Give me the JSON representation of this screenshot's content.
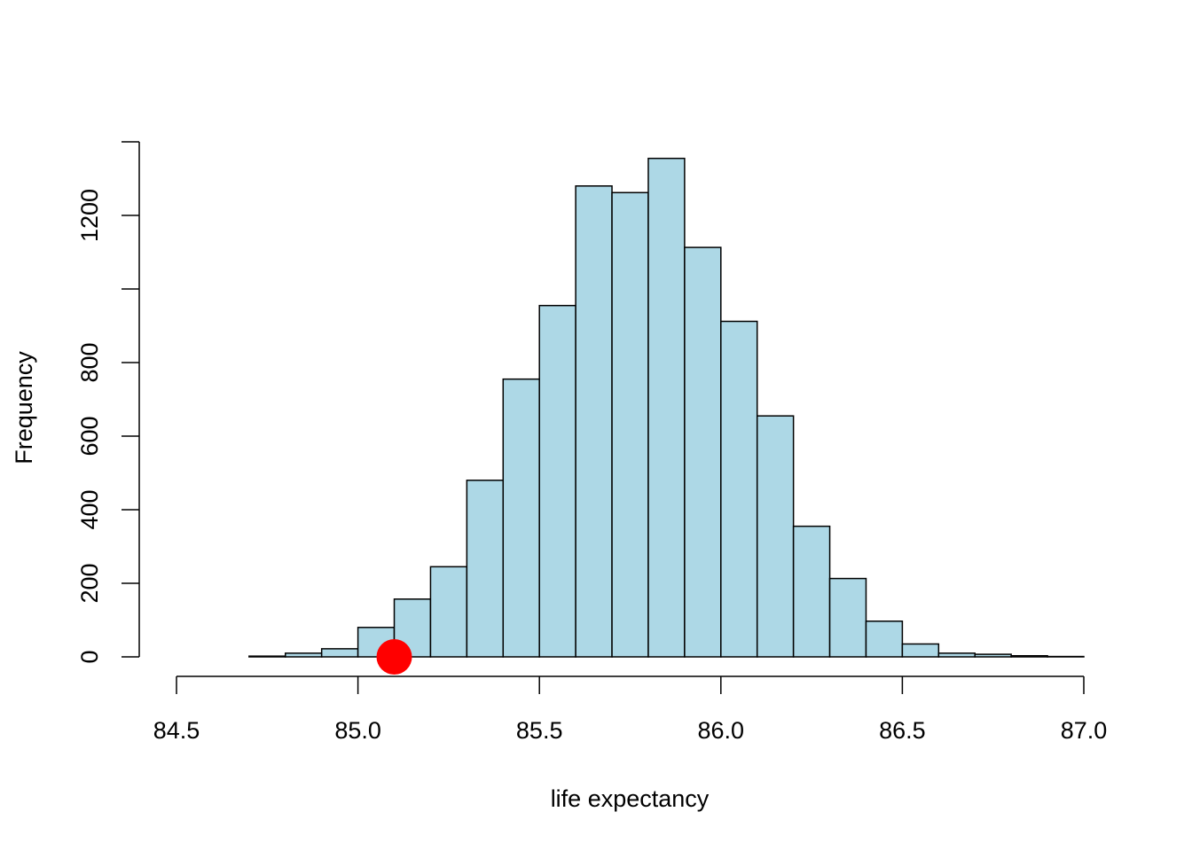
{
  "chart_data": {
    "type": "histogram",
    "title": "",
    "xlabel": "life expectancy",
    "ylabel": "Frequency",
    "bar_color": "#ADD8E6",
    "bar_border_color": "#000000",
    "marker_color": "#FF0000",
    "xlim": [
      84.5,
      87.0
    ],
    "ylim": [
      0,
      1400
    ],
    "x_ticks": [
      84.5,
      85.0,
      85.5,
      86.0,
      86.5,
      87.0
    ],
    "x_tick_labels": [
      "84.5",
      "85.0",
      "85.5",
      "86.0",
      "86.5",
      "87.0"
    ],
    "y_ticks": [
      0,
      200,
      400,
      600,
      800,
      1000,
      1200,
      1400
    ],
    "y_tick_labels": [
      "0",
      "200",
      "400",
      "600",
      "800",
      "",
      "1200",
      ""
    ],
    "bin_width": 0.1,
    "bins": [
      {
        "start": 84.5,
        "end": 84.6,
        "count": 0
      },
      {
        "start": 84.6,
        "end": 84.7,
        "count": 0
      },
      {
        "start": 84.7,
        "end": 84.8,
        "count": 2
      },
      {
        "start": 84.8,
        "end": 84.9,
        "count": 10
      },
      {
        "start": 84.9,
        "end": 85.0,
        "count": 22
      },
      {
        "start": 85.0,
        "end": 85.1,
        "count": 80
      },
      {
        "start": 85.1,
        "end": 85.2,
        "count": 157
      },
      {
        "start": 85.2,
        "end": 85.3,
        "count": 245
      },
      {
        "start": 85.3,
        "end": 85.4,
        "count": 480
      },
      {
        "start": 85.4,
        "end": 85.5,
        "count": 755
      },
      {
        "start": 85.5,
        "end": 85.6,
        "count": 955
      },
      {
        "start": 85.6,
        "end": 85.7,
        "count": 1280
      },
      {
        "start": 85.7,
        "end": 85.8,
        "count": 1262
      },
      {
        "start": 85.8,
        "end": 85.9,
        "count": 1355
      },
      {
        "start": 85.9,
        "end": 86.0,
        "count": 1113
      },
      {
        "start": 86.0,
        "end": 86.1,
        "count": 912
      },
      {
        "start": 86.1,
        "end": 86.2,
        "count": 655
      },
      {
        "start": 86.2,
        "end": 86.3,
        "count": 355
      },
      {
        "start": 86.3,
        "end": 86.4,
        "count": 213
      },
      {
        "start": 86.4,
        "end": 86.5,
        "count": 97
      },
      {
        "start": 86.5,
        "end": 86.6,
        "count": 35
      },
      {
        "start": 86.6,
        "end": 86.7,
        "count": 10
      },
      {
        "start": 86.7,
        "end": 86.8,
        "count": 7
      },
      {
        "start": 86.8,
        "end": 86.9,
        "count": 3
      },
      {
        "start": 86.9,
        "end": 87.0,
        "count": 1
      }
    ],
    "marker": {
      "x": 85.1,
      "y": 0
    }
  }
}
